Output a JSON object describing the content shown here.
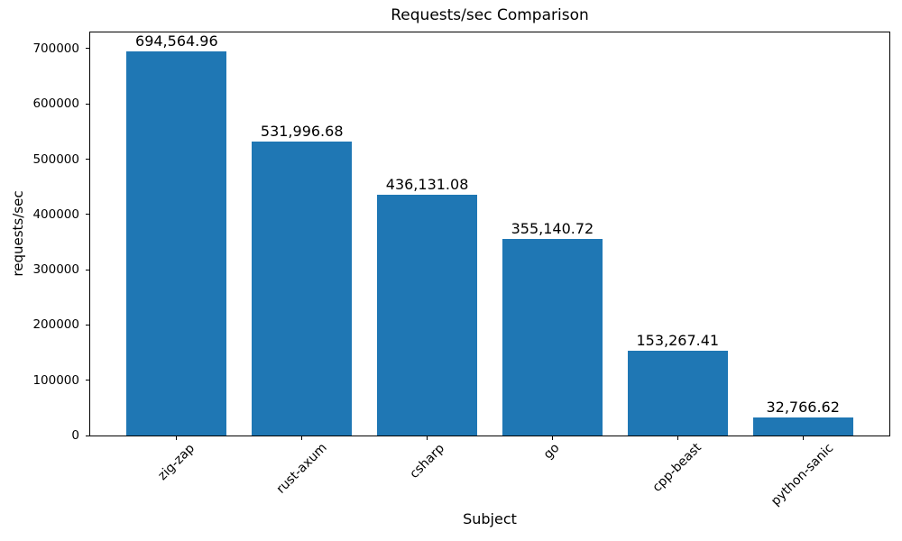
{
  "chart_data": {
    "type": "bar",
    "title": "Requests/sec Comparison",
    "xlabel": "Subject",
    "ylabel": "requests/sec",
    "categories": [
      "zig-zap",
      "rust-axum",
      "csharp",
      "go",
      "cpp-beast",
      "python-sanic"
    ],
    "values": [
      694564.96,
      531996.68,
      436131.08,
      355140.72,
      153267.41,
      32766.62
    ],
    "value_labels": [
      "694,564.96",
      "531,996.68",
      "436,131.08",
      "355,140.72",
      "153,267.41",
      "32,766.62"
    ],
    "yticks": [
      0,
      100000,
      200000,
      300000,
      400000,
      500000,
      600000,
      700000
    ],
    "ytick_labels": [
      "0",
      "100000",
      "200000",
      "300000",
      "400000",
      "500000",
      "600000",
      "700000"
    ],
    "ylim": [
      0,
      729293
    ],
    "xlim": [
      -0.69,
      5.69
    ],
    "bar_width_units": 0.8,
    "bar_color": "#1f77b4",
    "text_color": "#000000",
    "grid": false,
    "legend_position": "none",
    "xtick_rotation_deg": 45
  }
}
